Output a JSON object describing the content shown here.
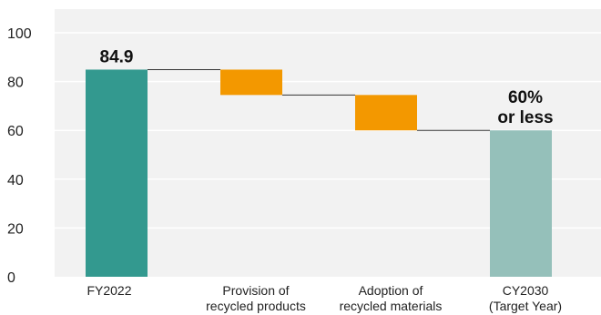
{
  "chart_data": {
    "type": "bar",
    "subtype": "waterfall",
    "categories": [
      [
        "FY2022"
      ],
      [
        "Provision of",
        "recycled products"
      ],
      [
        "Adoption of",
        "recycled materials"
      ],
      [
        "CY2030",
        "(Target Year)"
      ]
    ],
    "bars": [
      {
        "kind": "total",
        "start": 0,
        "end": 84.9
      },
      {
        "kind": "decrease",
        "start": 84.9,
        "end": 74.5
      },
      {
        "kind": "decrease",
        "start": 74.5,
        "end": 60
      },
      {
        "kind": "total",
        "start": 0,
        "end": 60
      }
    ],
    "data_labels": [
      [
        "84.9"
      ],
      [],
      [],
      [
        "60%",
        "or less"
      ]
    ],
    "ylim": [
      0,
      100
    ],
    "yticks": [
      0,
      20,
      40,
      60,
      80,
      100
    ],
    "grid": true,
    "legend": "none",
    "title": "",
    "xlabel": "",
    "ylabel": "",
    "colors": {
      "background": "#f2f2f2",
      "grid": "#ffffff",
      "bar_fy2022": "#33998f",
      "bar_decrease": "#f39800",
      "bar_target": "#95c0ba",
      "connector": "#333333"
    }
  }
}
